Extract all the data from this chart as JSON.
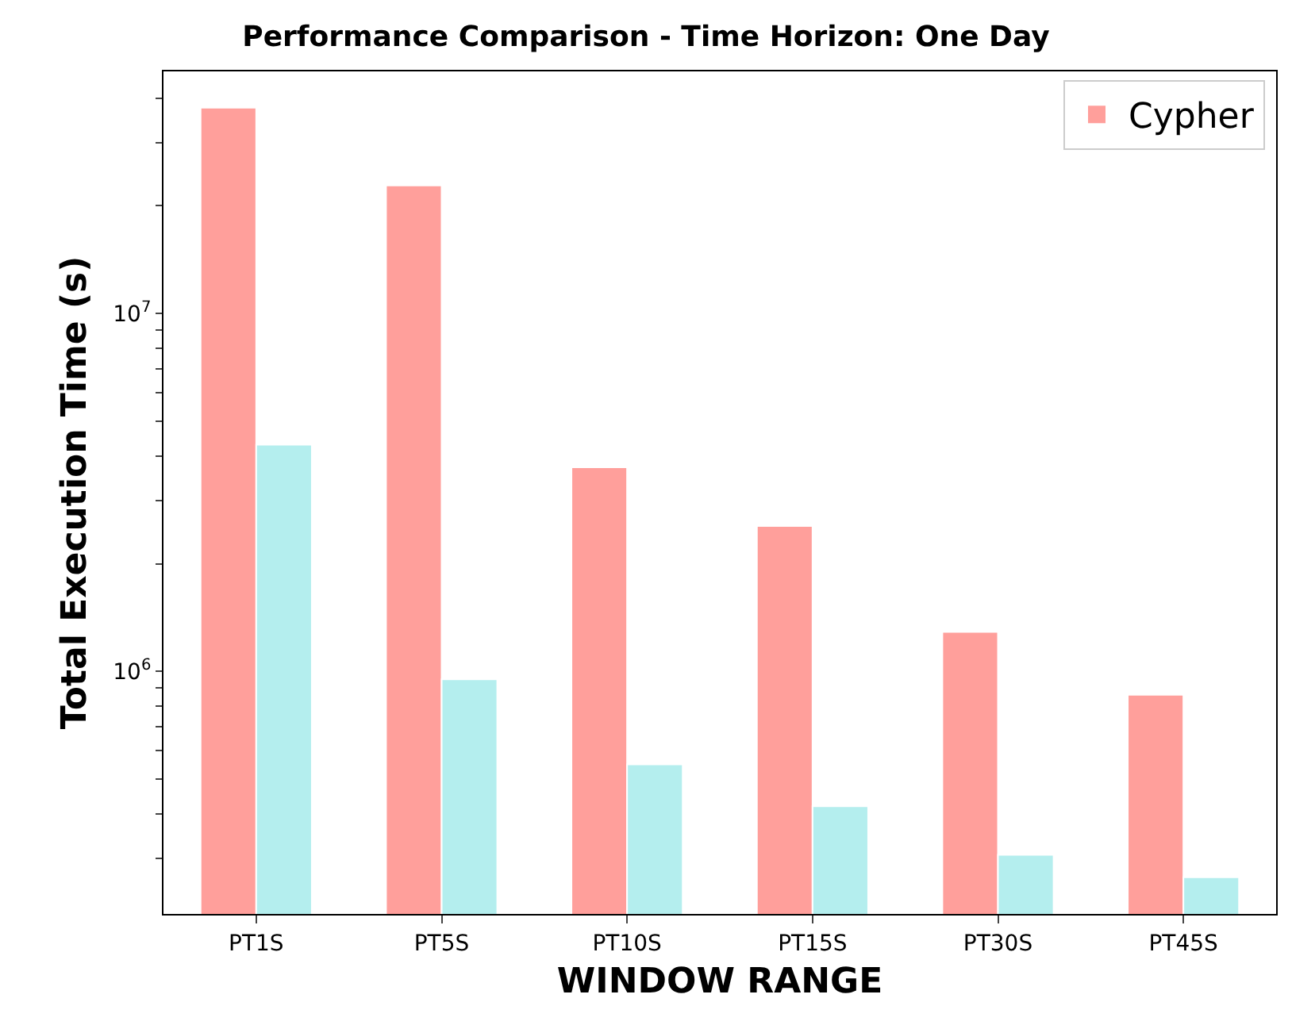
{
  "chart_data": {
    "type": "bar",
    "title": "Performance Comparison - Time Horizon: One Day",
    "xlabel": "WINDOW RANGE",
    "ylabel": "Total Execution Time (s)",
    "categories": [
      "PT1S",
      "PT5S",
      "PT10S",
      "PT15S",
      "PT30S",
      "PT45S"
    ],
    "series": [
      {
        "name": "Cypher",
        "color": "#ff9f9b",
        "values": [
          37600000,
          22800000,
          3720000,
          2550000,
          1290000,
          860000
        ]
      },
      {
        "color": "#b4eeee",
        "values": [
          4300000,
          950000,
          550000,
          420000,
          307000,
          266000
        ]
      }
    ],
    "log": true,
    "ylim": [
      210000,
      47500000
    ],
    "yticks": [
      {
        "value": 300000,
        "label": null
      },
      {
        "value": 400000,
        "label": null
      },
      {
        "value": 500000,
        "label": null
      },
      {
        "value": 600000,
        "label": null
      },
      {
        "value": 700000,
        "label": null
      },
      {
        "value": 800000,
        "label": null
      },
      {
        "value": 900000,
        "label": null
      },
      {
        "value": 1000000,
        "label": "10$^{6}$"
      },
      {
        "value": 2000000,
        "label": null
      },
      {
        "value": 3000000,
        "label": null
      },
      {
        "value": 4000000,
        "label": null
      },
      {
        "value": 5000000,
        "label": null
      },
      {
        "value": 6000000,
        "label": null
      },
      {
        "value": 7000000,
        "label": null
      },
      {
        "value": 8000000,
        "label": null
      },
      {
        "value": 9000000,
        "label": null
      },
      {
        "value": 10000000,
        "label": "10$^{7}$"
      },
      {
        "value": 20000000,
        "label": null
      },
      {
        "value": 30000000,
        "label": null
      },
      {
        "value": 40000000,
        "label": null
      }
    ],
    "grid": false,
    "legend": "top right"
  }
}
